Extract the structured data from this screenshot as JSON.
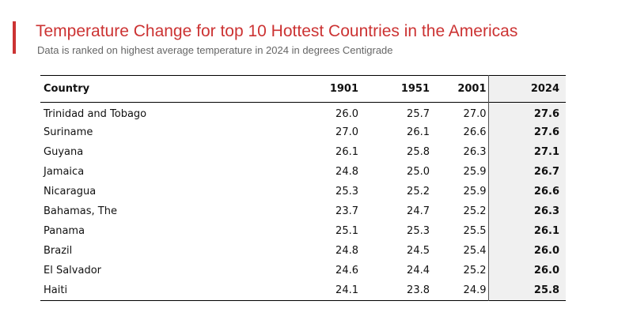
{
  "colors": {
    "accent": "#cc3333",
    "title": "#cc3333",
    "highlight_column_bg": "#f0f0f0"
  },
  "chart_data": {
    "type": "table",
    "title": "Temperature Change for top 10 Hottest Countries in the Americas",
    "subtitle": "Data is ranked on highest average temperature in 2024 in degrees Centigrade",
    "columns": [
      "Country",
      "1901",
      "1951",
      "2001",
      "2024"
    ],
    "rows": [
      [
        "Trinidad and Tobago",
        "26.0",
        "25.7",
        "27.0",
        "27.6"
      ],
      [
        "Suriname",
        "27.0",
        "26.1",
        "26.6",
        "27.6"
      ],
      [
        "Guyana",
        "26.1",
        "25.8",
        "26.3",
        "27.1"
      ],
      [
        "Jamaica",
        "24.8",
        "25.0",
        "25.9",
        "26.7"
      ],
      [
        "Nicaragua",
        "25.3",
        "25.2",
        "25.9",
        "26.6"
      ],
      [
        "Bahamas, The",
        "23.7",
        "24.7",
        "25.2",
        "26.3"
      ],
      [
        "Panama",
        "25.1",
        "25.3",
        "25.5",
        "26.1"
      ],
      [
        "Brazil",
        "24.8",
        "24.5",
        "25.4",
        "26.0"
      ],
      [
        "El Salvador",
        "24.6",
        "24.4",
        "25.2",
        "26.0"
      ],
      [
        "Haiti",
        "24.1",
        "23.8",
        "24.9",
        "25.8"
      ]
    ],
    "highlight_column": "2024"
  }
}
